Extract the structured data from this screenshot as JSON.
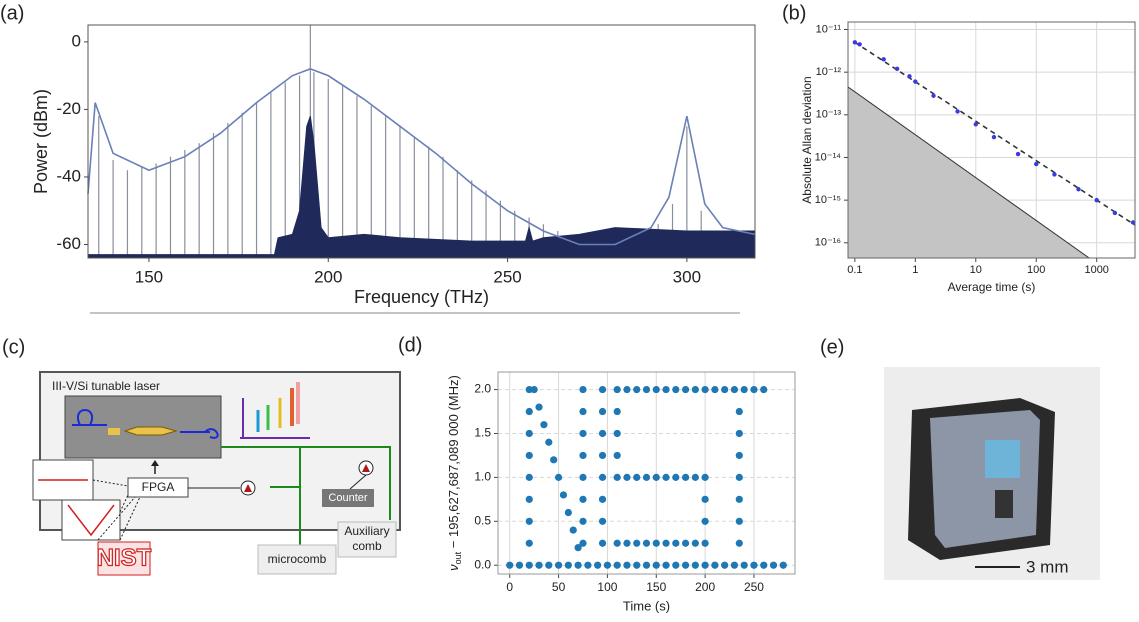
{
  "chart_data": [
    {
      "type": "line",
      "panel": "(a)",
      "xlabel": "Frequency (THz)",
      "ylabel": "Power (dBm)",
      "xlim": [
        133,
        319
      ],
      "ylim": [
        -64,
        5
      ],
      "xticks": [
        150,
        200,
        250,
        300
      ],
      "yticks": [
        0,
        -20,
        -40,
        -60
      ],
      "grid": false,
      "series": [
        {
          "kind": "stem",
          "color": "#8a8f9c",
          "x": [
            136,
            140,
            144,
            148,
            152,
            156,
            160,
            164,
            168,
            172,
            176,
            180,
            184,
            188,
            192,
            196,
            200,
            204,
            208,
            212,
            216,
            220,
            224,
            228,
            232,
            236,
            240,
            244,
            248,
            252,
            256,
            260,
            264,
            268,
            272,
            276,
            280,
            284,
            288,
            292,
            296,
            300,
            304,
            195
          ],
          "values": [
            -22,
            -35,
            -38,
            -37,
            -36,
            -34,
            -32,
            -30,
            -27,
            -24,
            -21,
            -18,
            -15,
            -12,
            -10,
            -9,
            -11,
            -13,
            -16,
            -19,
            -22,
            -25,
            -28,
            -31,
            -34,
            -38,
            -41,
            -44,
            -47,
            -50,
            -52,
            -54,
            -56,
            -58,
            -59,
            -60,
            -60,
            -59,
            -57,
            -54,
            -48,
            -25,
            -50,
            5
          ]
        },
        {
          "kind": "area",
          "color": "#1f2a5a",
          "x": [
            133,
            185,
            186,
            190,
            192,
            194,
            195,
            196,
            198,
            200,
            210,
            220,
            240,
            255,
            256,
            257,
            260,
            270,
            280,
            300,
            319
          ],
          "values": [
            -63,
            -63,
            -58,
            -57,
            -50,
            -25,
            -22,
            -30,
            -55,
            -58,
            -57,
            -58,
            -59,
            -59,
            -55,
            -59,
            -58,
            -57,
            -55,
            -56,
            -56
          ]
        },
        {
          "kind": "line",
          "color": "#6b7fb8",
          "x": [
            133,
            135,
            140,
            150,
            160,
            170,
            180,
            190,
            195,
            200,
            210,
            220,
            230,
            240,
            250,
            260,
            270,
            280,
            290,
            295,
            300,
            305,
            310,
            319
          ],
          "values": [
            -45,
            -18,
            -33,
            -38,
            -34,
            -27,
            -18,
            -10,
            -8,
            -10,
            -17,
            -25,
            -33,
            -42,
            -50,
            -56,
            -60,
            -60,
            -55,
            -46,
            -22,
            -48,
            -55,
            -57
          ]
        }
      ]
    },
    {
      "type": "scatter",
      "panel": "(b)",
      "xlabel": "Average time (s)",
      "ylabel": "Absolute Allan deviation",
      "log_scale": true,
      "grid": true,
      "xlim": [
        0.077,
        4300
      ],
      "ylim": [
        4.4e-17,
        1.5e-11
      ],
      "xticks": [
        0.1,
        1,
        10,
        100,
        1000
      ],
      "yticks": [
        {
          "value": 1e-11,
          "label": "10⁻¹¹"
        },
        {
          "value": 1e-12,
          "label": "10⁻¹²"
        },
        {
          "value": 1e-13,
          "label": "10⁻¹³"
        },
        {
          "value": 1e-14,
          "label": "10⁻¹⁴"
        },
        {
          "value": 1e-15,
          "label": "10⁻¹⁵"
        },
        {
          "value": 1e-16,
          "label": "10⁻¹⁶"
        }
      ],
      "series": [
        {
          "kind": "area",
          "color": "#c4c4c4",
          "x": [
            0.077,
            750
          ],
          "values": [
            4.5e-13,
            4.4e-17
          ]
        },
        {
          "kind": "line",
          "dash": true,
          "color": "#333333",
          "x": [
            0.1,
            4300
          ],
          "values": [
            5e-12,
            2.6e-16
          ]
        },
        {
          "kind": "scatter",
          "color": "#3a3ae0",
          "x": [
            0.1,
            0.12,
            0.3,
            0.5,
            0.8,
            1,
            2,
            5,
            10,
            20,
            50,
            100,
            200,
            500,
            1000,
            2000,
            4000
          ],
          "values": [
            5e-12,
            4.5e-12,
            2e-12,
            1.2e-12,
            8e-13,
            6e-13,
            2.8e-13,
            1.2e-13,
            6e-14,
            3e-14,
            1.2e-14,
            7e-15,
            4e-15,
            1.8e-15,
            1e-15,
            5e-16,
            3e-16
          ]
        }
      ]
    },
    {
      "type": "scatter",
      "panel": "(d)",
      "xlabel": "Time (s)",
      "ylabel": "ν",
      "ylabel_sub": "out",
      "ylabel_rest": " − 195,627,687,089 000 (MHz)",
      "grid": true,
      "xlim": [
        -12,
        292
      ],
      "ylim": [
        -0.1,
        2.2
      ],
      "xticks": [
        0,
        50,
        100,
        150,
        200,
        250
      ],
      "yticks": [
        {
          "value": 0,
          "label": "0.0"
        },
        {
          "value": 0.5,
          "label": "0.5"
        },
        {
          "value": 1,
          "label": "1.0"
        },
        {
          "value": 1.5,
          "label": "1.5"
        },
        {
          "value": 2,
          "label": "2.0"
        }
      ],
      "series": [
        {
          "kind": "scatter",
          "color": "#1f77b4",
          "x": [
            0,
            10,
            20,
            30,
            40,
            50,
            60,
            70,
            80,
            90,
            100,
            110,
            120,
            130,
            140,
            150,
            160,
            170,
            180,
            190,
            200,
            210,
            220,
            230,
            240,
            250,
            260,
            270,
            280,
            20,
            20,
            20,
            20,
            20,
            20,
            20,
            20,
            25,
            30,
            35,
            40,
            45,
            50,
            55,
            60,
            65,
            70,
            75,
            75,
            75,
            75,
            75,
            75,
            75,
            75,
            95,
            95,
            95,
            95,
            95,
            95,
            95,
            95,
            110,
            120,
            130,
            140,
            150,
            160,
            170,
            180,
            190,
            200,
            110,
            110,
            110,
            110,
            120,
            130,
            140,
            150,
            160,
            170,
            180,
            190,
            200,
            200,
            200,
            110,
            120,
            130,
            140,
            150,
            160,
            170,
            180,
            190,
            200,
            210,
            220,
            230,
            240,
            250,
            260,
            235,
            235,
            235,
            235,
            235,
            235,
            235
          ],
          "values": [
            0,
            0,
            0,
            0,
            0,
            0,
            0,
            0,
            0,
            0,
            0,
            0,
            0,
            0,
            0,
            0,
            0,
            0,
            0,
            0,
            0,
            0,
            0,
            0,
            0,
            0,
            0,
            0,
            0,
            0.25,
            0.5,
            0.75,
            1,
            1.25,
            1.5,
            1.75,
            2,
            2,
            1.8,
            1.6,
            1.4,
            1.2,
            1,
            0.8,
            0.6,
            0.4,
            0.2,
            0.25,
            0.5,
            0.75,
            1,
            1.25,
            1.5,
            1.75,
            2,
            0.25,
            0.5,
            0.75,
            1,
            1.25,
            1.5,
            1.75,
            2,
            2,
            2,
            2,
            2,
            2,
            2,
            2,
            2,
            2,
            2,
            1.25,
            1.5,
            1.75,
            1,
            1,
            1,
            1,
            1,
            1,
            1,
            1,
            1,
            1,
            0.5,
            0.75,
            0.25,
            0.25,
            0.25,
            0.25,
            0.25,
            0.25,
            0.25,
            0.25,
            0.25,
            0.25,
            2,
            2,
            2,
            2,
            2,
            2,
            0.25,
            0.5,
            0.75,
            1,
            1.25,
            1.5,
            1.75
          ]
        }
      ]
    }
  ],
  "diagram": {
    "panel": "(c)",
    "laser": "III-V/Si tunable laser",
    "fpga": "FPGA",
    "counter": "Counter",
    "microcomb": "microcomb",
    "auxiliary": [
      "Auxiliary",
      "comb"
    ],
    "logo": "NIST"
  },
  "photo": {
    "panel": "(e)",
    "scale_bar": "3 mm"
  }
}
